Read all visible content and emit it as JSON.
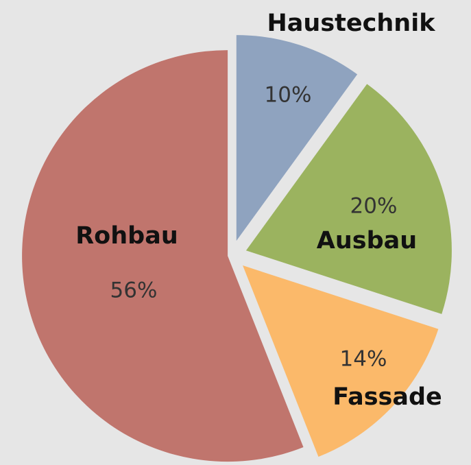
{
  "chart_data": {
    "type": "pie",
    "categories": [
      "Haustechnik",
      "Ausbau",
      "Fassade",
      "Rohbau"
    ],
    "values": [
      10,
      20,
      14,
      56
    ],
    "value_labels": [
      "10%",
      "20%",
      "14%",
      "56%"
    ],
    "colors": [
      "#8fa3bf",
      "#9bb35f",
      "#fbb96a",
      "#c0756d"
    ]
  }
}
